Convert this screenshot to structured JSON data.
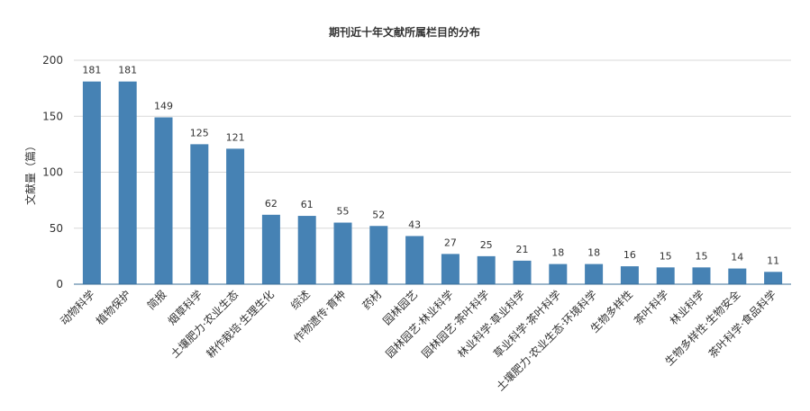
{
  "chart_data": {
    "type": "bar",
    "title": "期刊近十年文献所属栏目的分布",
    "xlabel": "",
    "ylabel": "文献量（篇）",
    "ylim": [
      0,
      200
    ],
    "yticks": [
      0,
      50,
      100,
      150,
      200
    ],
    "grid": true,
    "bar_color": "#4682b4",
    "categories": [
      "动物科学",
      "植物保护",
      "简报",
      "烟草科学",
      "土壤肥力·农业生态",
      "耕作栽培·生理生化",
      "综述",
      "作物遗传·育种",
      "药材",
      "园林园艺",
      "园林园艺·林业科学",
      "园林园艺·茶叶科学",
      "林业科学·草业科学",
      "草业科学·茶叶科学",
      "土壤肥力·农业生态·环境科学",
      "生物多样性",
      "茶叶科学",
      "林业科学",
      "生物多样性·生物安全",
      "茶叶科学·食品科学"
    ],
    "values": [
      181,
      181,
      149,
      125,
      121,
      62,
      61,
      55,
      52,
      43,
      27,
      25,
      21,
      18,
      18,
      16,
      15,
      15,
      14,
      11
    ]
  }
}
